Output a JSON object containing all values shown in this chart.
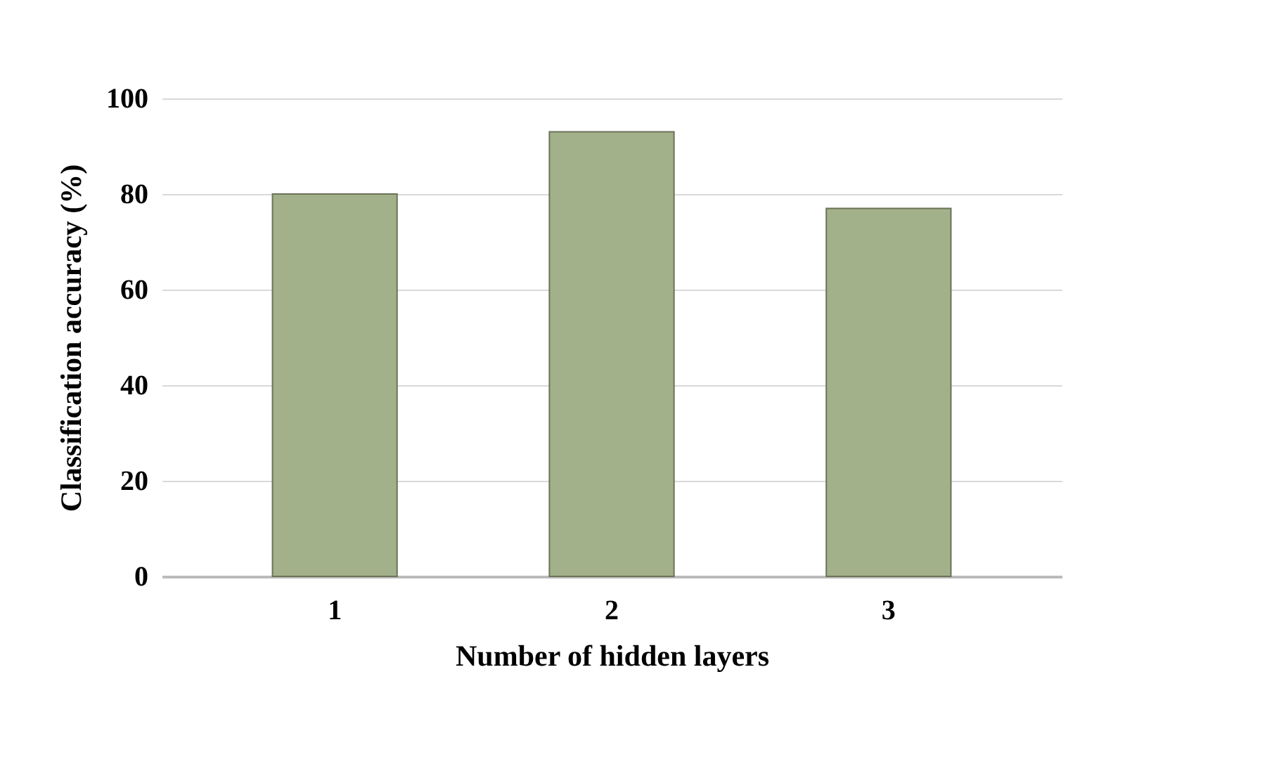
{
  "chart_data": {
    "type": "bar",
    "xlabel": "Number of hidden layers",
    "ylabel": "Classification accuracy (%)",
    "categories": [
      "1",
      "2",
      "3"
    ],
    "values": [
      80,
      93,
      77
    ],
    "color": "#a3b18a",
    "ylim": [
      0,
      100
    ],
    "yticks": [
      0,
      20,
      40,
      60,
      80,
      100
    ],
    "grid": "y"
  }
}
